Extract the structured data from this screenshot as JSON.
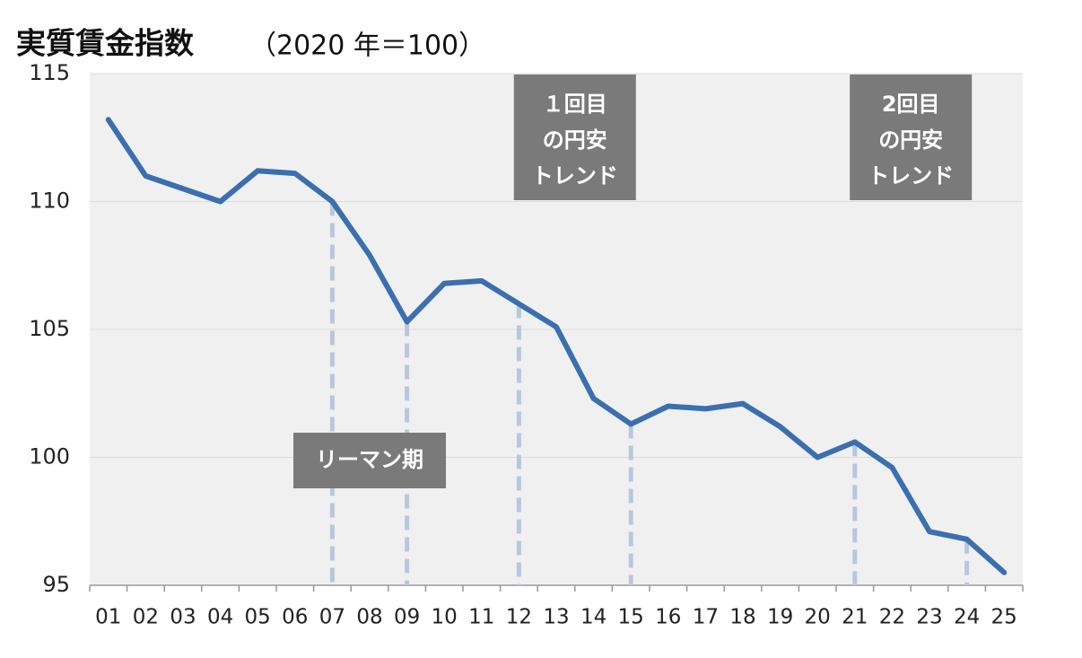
{
  "chart_data": {
    "type": "line",
    "title": "実質賃金指数",
    "subtitle": "（2020 年＝100）",
    "categories": [
      "01",
      "02",
      "03",
      "04",
      "05",
      "06",
      "07",
      "08",
      "09",
      "10",
      "11",
      "12",
      "13",
      "14",
      "15",
      "16",
      "17",
      "18",
      "19",
      "20",
      "21",
      "22",
      "23",
      "24",
      "25"
    ],
    "values": [
      113.2,
      111.0,
      110.5,
      110.0,
      111.2,
      111.1,
      110.0,
      107.9,
      105.3,
      106.8,
      106.9,
      106.0,
      105.1,
      102.3,
      101.3,
      102.0,
      101.9,
      102.1,
      101.2,
      100.0,
      100.6,
      99.6,
      97.1,
      96.8,
      95.5
    ],
    "color": "#3a6fb0",
    "ylim": [
      95,
      115
    ],
    "yticks": [
      95,
      100,
      105,
      110,
      115
    ],
    "grid": true,
    "highlight_periods": [
      {
        "label_lines": [
          "リーマン期"
        ],
        "from": "07",
        "to": "09",
        "box": "bottom"
      },
      {
        "label_lines": [
          "１回目",
          "の円安",
          "トレンド"
        ],
        "from": "12",
        "to": "15",
        "box": "top"
      },
      {
        "label_lines": [
          "2回目",
          "の円安",
          "トレンド"
        ],
        "from": "21",
        "to": "24",
        "box": "top"
      }
    ]
  }
}
